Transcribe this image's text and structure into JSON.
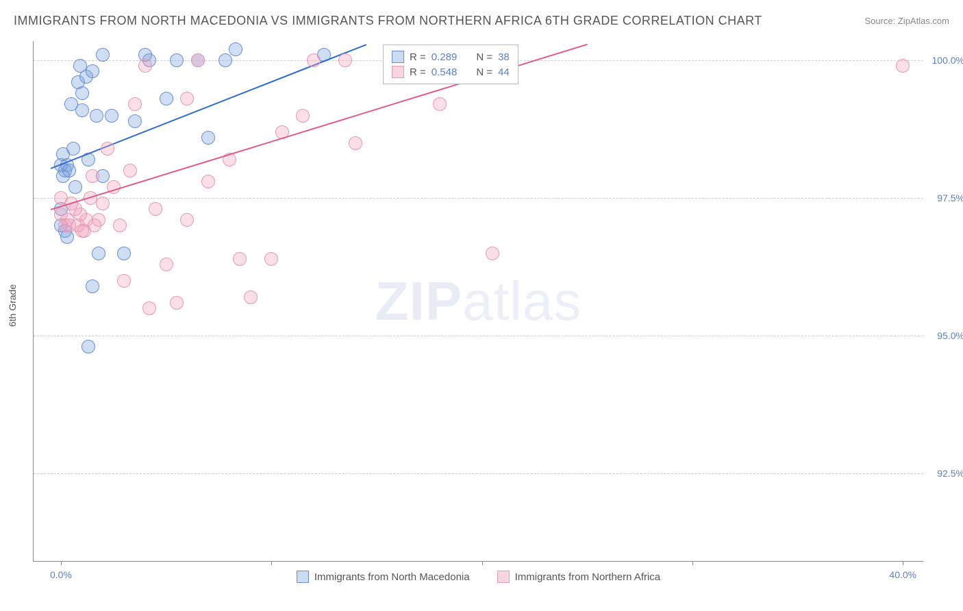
{
  "title": "IMMIGRANTS FROM NORTH MACEDONIA VS IMMIGRANTS FROM NORTHERN AFRICA 6TH GRADE CORRELATION CHART",
  "source_label": "Source: ",
  "source_value": "ZipAtlas.com",
  "watermark_bold": "ZIP",
  "watermark_light": "atlas",
  "axes": {
    "ylabel": "6th Grade",
    "x_min": -1.3,
    "x_max": 41.0,
    "y_min": 90.9,
    "y_max": 100.35,
    "x_tick_labels": [
      "0.0%",
      "40.0%"
    ],
    "x_tick_values": [
      0.0,
      40.0
    ],
    "x_minor_ticks": [
      0,
      10,
      20,
      30,
      40
    ],
    "y_tick_labels": [
      "92.5%",
      "95.0%",
      "97.5%",
      "100.0%"
    ],
    "y_tick_values": [
      92.5,
      95.0,
      97.5,
      100.0
    ]
  },
  "series": [
    {
      "name": "Immigrants from North Macedonia",
      "color_fill": "rgba(120,160,220,0.35)",
      "color_stroke": "#6a8fd0",
      "swatch_fill": "#cbdcf2",
      "swatch_border": "#6a8fd0",
      "marker_radius": 10,
      "r_value": "0.289",
      "n_value": "38",
      "trend": {
        "x1": -0.5,
        "y1": 98.05,
        "x2": 14.5,
        "y2": 100.3,
        "color": "#2f6bd0",
        "width": 2
      },
      "points": [
        [
          0.0,
          97.0
        ],
        [
          0.0,
          97.3
        ],
        [
          0.1,
          97.9
        ],
        [
          0.2,
          98.0
        ],
        [
          0.3,
          98.1
        ],
        [
          0.0,
          98.1
        ],
        [
          0.5,
          99.2
        ],
        [
          0.8,
          99.6
        ],
        [
          1.0,
          99.4
        ],
        [
          1.2,
          99.7
        ],
        [
          1.3,
          98.2
        ],
        [
          0.1,
          98.3
        ],
        [
          0.4,
          98.0
        ],
        [
          0.7,
          97.7
        ],
        [
          0.2,
          96.9
        ],
        [
          1.0,
          99.1
        ],
        [
          1.5,
          99.8
        ],
        [
          2.4,
          99.0
        ],
        [
          2.0,
          97.9
        ],
        [
          4.2,
          100.0
        ],
        [
          3.5,
          98.9
        ],
        [
          3.0,
          96.5
        ],
        [
          1.8,
          96.5
        ],
        [
          1.3,
          94.8
        ],
        [
          1.5,
          95.9
        ],
        [
          4.0,
          100.1
        ],
        [
          5.0,
          99.3
        ],
        [
          5.5,
          100.0
        ],
        [
          6.5,
          100.0
        ],
        [
          7.0,
          98.6
        ],
        [
          7.8,
          100.0
        ],
        [
          8.3,
          100.2
        ],
        [
          12.5,
          100.1
        ],
        [
          0.6,
          98.4
        ],
        [
          0.9,
          99.9
        ],
        [
          1.7,
          99.0
        ],
        [
          2.0,
          100.1
        ],
        [
          0.3,
          96.8
        ]
      ]
    },
    {
      "name": "Immigrants from Northern Africa",
      "color_fill": "rgba(240,160,190,0.35)",
      "color_stroke": "#e69ab3",
      "swatch_fill": "#f6d7e1",
      "swatch_border": "#e69ab3",
      "marker_radius": 10,
      "r_value": "0.548",
      "n_value": "44",
      "trend": {
        "x1": -0.5,
        "y1": 97.3,
        "x2": 25.0,
        "y2": 100.3,
        "color": "#e05a8c",
        "width": 2
      },
      "points": [
        [
          0.0,
          97.2
        ],
        [
          0.3,
          97.1
        ],
        [
          0.5,
          97.4
        ],
        [
          0.8,
          97.0
        ],
        [
          1.0,
          96.9
        ],
        [
          1.2,
          97.1
        ],
        [
          1.5,
          97.9
        ],
        [
          1.8,
          97.1
        ],
        [
          2.0,
          97.4
        ],
        [
          2.2,
          98.4
        ],
        [
          2.5,
          97.7
        ],
        [
          3.0,
          96.0
        ],
        [
          3.5,
          99.2
        ],
        [
          4.0,
          99.9
        ],
        [
          4.5,
          97.3
        ],
        [
          5.0,
          96.3
        ],
        [
          5.5,
          95.6
        ],
        [
          6.0,
          99.3
        ],
        [
          6.5,
          100.0
        ],
        [
          7.0,
          97.8
        ],
        [
          4.2,
          95.5
        ],
        [
          8.0,
          98.2
        ],
        [
          8.5,
          96.4
        ],
        [
          9.0,
          95.7
        ],
        [
          10.0,
          96.4
        ],
        [
          10.5,
          98.7
        ],
        [
          11.5,
          99.0
        ],
        [
          12.0,
          100.0
        ],
        [
          13.5,
          100.0
        ],
        [
          14.0,
          98.5
        ],
        [
          18.0,
          99.2
        ],
        [
          20.5,
          96.5
        ],
        [
          40.0,
          99.9
        ],
        [
          1.4,
          97.5
        ],
        [
          0.2,
          97.0
        ],
        [
          0.7,
          97.3
        ],
        [
          2.8,
          97.0
        ],
        [
          3.3,
          98.0
        ],
        [
          6.0,
          97.1
        ],
        [
          0.0,
          97.5
        ],
        [
          1.1,
          96.9
        ],
        [
          0.4,
          97.0
        ],
        [
          0.9,
          97.2
        ],
        [
          1.6,
          97.0
        ]
      ]
    }
  ],
  "legend_top": {
    "r_label": "R =",
    "n_label": "N ="
  },
  "colors": {
    "grid": "#cccccc",
    "axis": "#888888",
    "tick_text": "#5b7fc7",
    "title_text": "#555555"
  }
}
